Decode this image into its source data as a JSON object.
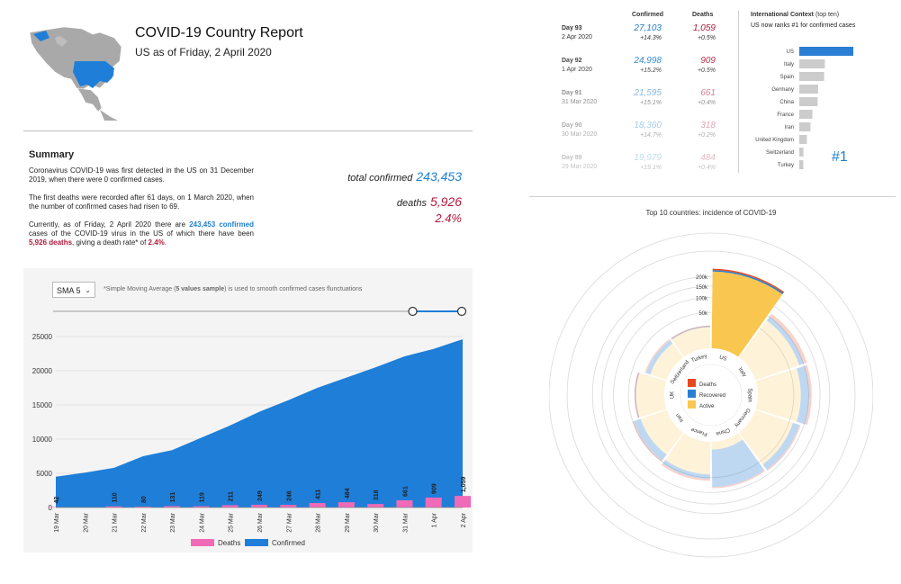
{
  "header": {
    "title": "COVID-19 Country Report",
    "subtitle": "US as of Friday, 2 April 2020"
  },
  "summary": {
    "heading": "Summary",
    "p1": "Coronavirus COVID-19 was first detected in the US on 31 December 2019, when there were 0 confirmed cases.",
    "p2": "The first deaths were recorded after 61 days, on 1 March 2020, when the number of confirmed cases had risen to 69.",
    "p3_a": "Currently, as of Friday, 2 April 2020 there are",
    "p3_confirmed": "243,453 confirmed",
    "p3_b": "cases of the COVID-19 virus in the US of which there have been",
    "p3_deaths": "5,926 deaths",
    "p3_c": ", giving a death rate* of",
    "p3_rate": "2.4%",
    "p3_d": "."
  },
  "stats": {
    "confirmed_label": "total confirmed",
    "confirmed_value": "243,453",
    "deaths_label": "deaths",
    "deaths_value": "5,926",
    "rate": "2.4%"
  },
  "controls": {
    "sma_value": "SMA 5",
    "sma_note_a": "*Simple Moving Average (",
    "sma_note_b": "5 values sample",
    "sma_note_c": ") is used to smooth confirmed cases flunctuations",
    "range_start": 0.88,
    "range_end": 1.0
  },
  "daily_table": {
    "headers": [
      "Confirmed",
      "Deaths"
    ],
    "rows": [
      {
        "day": "Day 93",
        "date": "2 Apr 2020",
        "confirmed": "27,103",
        "conf_pct": "+14.3%",
        "deaths": "1,059",
        "death_pct": "+0.5%"
      },
      {
        "day": "Day 92",
        "date": "1 Apr 2020",
        "confirmed": "24,998",
        "conf_pct": "+15.2%",
        "deaths": "909",
        "death_pct": "+0.5%"
      },
      {
        "day": "Day 91",
        "date": "31 Mar 2020",
        "confirmed": "21,595",
        "conf_pct": "+15.1%",
        "deaths": "661",
        "death_pct": "+0.4%"
      },
      {
        "day": "Day 90",
        "date": "30 Mar 2020",
        "confirmed": "18,360",
        "conf_pct": "+14.7%",
        "deaths": "318",
        "death_pct": "+0.2%"
      },
      {
        "day": "Day 89",
        "date": "29 Mar 2020",
        "confirmed": "19,979",
        "conf_pct": "+19.1%",
        "deaths": "484",
        "death_pct": "+0.4%"
      }
    ]
  },
  "international": {
    "title": "International Context",
    "title_note": "(top ten)",
    "text": "US now ranks #1 for confirmed cases",
    "rank_label": "#1",
    "highlight_color": "#2a7fd4",
    "bar_color": "#cccccc"
  },
  "radial": {
    "title": "Top 10 countries: incidence of COVID-19",
    "legend": [
      {
        "label": "Deaths",
        "color": "#e8481e"
      },
      {
        "label": "Recovered",
        "color": "#2a7fd4"
      },
      {
        "label": "Active",
        "color": "#f9c74f"
      }
    ],
    "ticks": [
      "50k",
      "100k",
      "150k",
      "200k"
    ]
  },
  "chart_data": [
    {
      "type": "area",
      "x": [
        "19 Mar",
        "20 Mar",
        "21 Mar",
        "22 Mar",
        "23 Mar",
        "24 Mar",
        "25 Mar",
        "26 Mar",
        "27 Mar",
        "28 Mar",
        "29 Mar",
        "30 Mar",
        "31 Mar",
        "1 Apr",
        "2 Apr"
      ],
      "series": [
        {
          "name": "Confirmed",
          "type": "area",
          "color": "#1f7ed8",
          "values": [
            4500,
            5100,
            5800,
            7500,
            8400,
            10200,
            12000,
            14000,
            15700,
            17500,
            19000,
            20500,
            22100,
            23200,
            24600
          ]
        },
        {
          "name": "Deaths",
          "type": "bar",
          "color": "#f06ab8",
          "values": [
            42,
            null,
            110,
            80,
            131,
            119,
            211,
            249,
            246,
            411,
            484,
            318,
            661,
            909,
            1059
          ],
          "labels": [
            "42",
            "",
            "110",
            "80",
            "131",
            "119",
            "211",
            "249",
            "246",
            "411",
            "484",
            "318",
            "661",
            "909",
            "1,059"
          ]
        }
      ],
      "ylim": [
        0,
        25000
      ],
      "yticks": [
        "0",
        "5000",
        "10000",
        "15000",
        "20000",
        "25000"
      ],
      "grid": true,
      "legend": "bottom"
    },
    {
      "type": "bar",
      "orientation": "horizontal",
      "categories": [
        "US",
        "Italy",
        "Spain",
        "Germany",
        "China",
        "France",
        "Iran",
        "United Kingdom",
        "Switzerland",
        "Turkey"
      ],
      "values": [
        243453,
        115242,
        112065,
        84794,
        82432,
        59105,
        50468,
        34173,
        18827,
        18135
      ]
    },
    {
      "type": "radial-stacked-bar",
      "categories": [
        "US",
        "Italy",
        "Spain",
        "Germany",
        "China",
        "France",
        "Iran",
        "UK",
        "Switzerland",
        "Turkey"
      ],
      "series": [
        {
          "name": "Deaths",
          "values": [
            5926,
            13915,
            10348,
            1107,
            3316,
            5387,
            3160,
            2921,
            591,
            356
          ]
        },
        {
          "name": "Recovered",
          "values": [
            9001,
            18278,
            30513,
            22440,
            76760,
            12428,
            17935,
            179,
            6415,
            484
          ]
        },
        {
          "name": "Active",
          "values": [
            228526,
            83049,
            71204,
            61247,
            2356,
            41290,
            29373,
            31073,
            11821,
            17295
          ]
        }
      ],
      "ticks": [
        50000,
        100000,
        150000,
        200000
      ]
    }
  ]
}
